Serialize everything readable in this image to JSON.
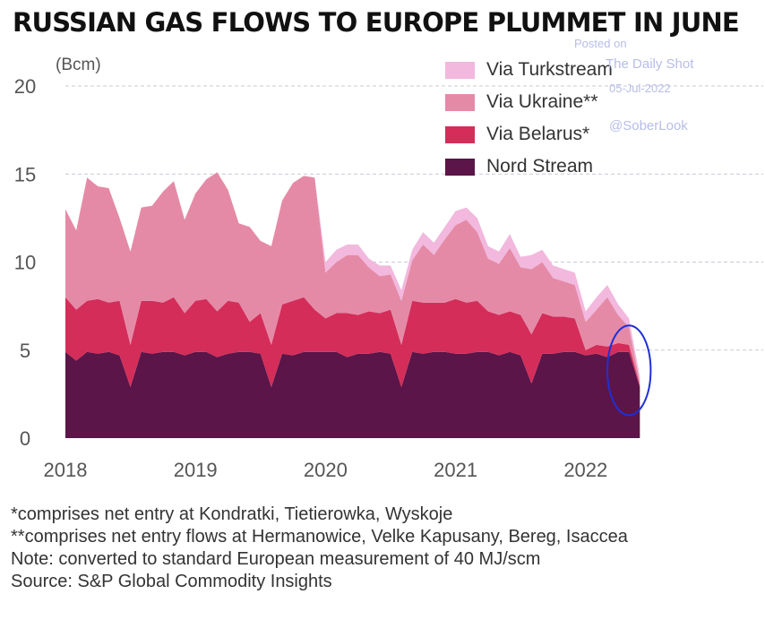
{
  "title": "RUSSIAN GAS FLOWS TO EUROPE PLUMMET IN JUNE",
  "watermark": {
    "line1": "Posted on",
    "line2": "The Daily Shot",
    "line3": "05-Jul-2022",
    "line4": "@SoberLook"
  },
  "notes": [
    "*comprises net entry at Kondratki, Tietierowka, Wyskoje",
    "**comprises net entry flows at Hermanowice, Velke Kapusany, Bereg, Isaccea",
    "Note: converted to standard European measurement of 40 MJ/scm",
    "Source: S&P Global Commodity Insights"
  ],
  "chart_data": {
    "type": "area",
    "stacked": true,
    "ylabel": "(Bcm)",
    "ylim": [
      0,
      20
    ],
    "yticks": [
      "0",
      "5",
      "10",
      "15",
      "20"
    ],
    "xticks": [
      "2018",
      "2019",
      "2020",
      "2021",
      "2022"
    ],
    "grid": "horizontal dashed",
    "legend_position": "top-right",
    "x": [
      "2018-01",
      "2018-02",
      "2018-03",
      "2018-04",
      "2018-05",
      "2018-06",
      "2018-07",
      "2018-08",
      "2018-09",
      "2018-10",
      "2018-11",
      "2018-12",
      "2019-01",
      "2019-02",
      "2019-03",
      "2019-04",
      "2019-05",
      "2019-06",
      "2019-07",
      "2019-08",
      "2019-09",
      "2019-10",
      "2019-11",
      "2019-12",
      "2020-01",
      "2020-02",
      "2020-03",
      "2020-04",
      "2020-05",
      "2020-06",
      "2020-07",
      "2020-08",
      "2020-09",
      "2020-10",
      "2020-11",
      "2020-12",
      "2021-01",
      "2021-02",
      "2021-03",
      "2021-04",
      "2021-05",
      "2021-06",
      "2021-07",
      "2021-08",
      "2021-09",
      "2021-10",
      "2021-11",
      "2021-12",
      "2022-01",
      "2022-02",
      "2022-03",
      "2022-04",
      "2022-05",
      "2022-06"
    ],
    "series": [
      {
        "name": "Nord Stream",
        "color": "#5b1548",
        "values": [
          4.9,
          4.4,
          4.9,
          4.8,
          4.9,
          4.7,
          2.9,
          4.9,
          4.8,
          4.9,
          4.9,
          4.7,
          4.9,
          4.9,
          4.6,
          4.8,
          4.9,
          4.9,
          4.8,
          2.9,
          4.8,
          4.7,
          4.9,
          4.9,
          4.9,
          4.9,
          4.6,
          4.8,
          4.8,
          4.9,
          4.8,
          2.9,
          4.9,
          4.8,
          4.9,
          4.9,
          4.8,
          4.8,
          4.9,
          4.9,
          4.7,
          4.9,
          4.7,
          3.1,
          4.8,
          4.8,
          4.9,
          4.9,
          4.7,
          4.8,
          4.6,
          4.9,
          4.9,
          2.9
        ]
      },
      {
        "name": "Via Belarus*",
        "color": "#d42d5a",
        "values": [
          3.1,
          2.9,
          2.9,
          3.1,
          2.8,
          3.1,
          2.4,
          2.9,
          3.0,
          2.8,
          3.1,
          2.4,
          2.9,
          3.0,
          2.6,
          3.0,
          2.8,
          1.7,
          2.3,
          2.4,
          2.8,
          3.1,
          3.1,
          2.4,
          1.9,
          2.2,
          2.5,
          2.2,
          2.4,
          2.2,
          2.5,
          2.4,
          2.9,
          2.9,
          2.8,
          2.8,
          3.1,
          2.9,
          2.9,
          2.3,
          2.3,
          2.3,
          2.3,
          2.8,
          2.3,
          2.1,
          2.0,
          1.9,
          0.3,
          0.5,
          0.6,
          0.5,
          0.4,
          0.1
        ]
      },
      {
        "name": "Via Ukraine**",
        "color": "#e58aa6",
        "values": [
          5.0,
          4.5,
          7.0,
          6.4,
          6.5,
          4.7,
          5.3,
          5.3,
          5.4,
          6.3,
          6.6,
          5.3,
          6.1,
          6.8,
          7.9,
          6.3,
          4.5,
          5.4,
          4.1,
          5.6,
          5.9,
          6.7,
          6.9,
          7.5,
          2.6,
          2.9,
          3.3,
          3.4,
          2.5,
          2.1,
          2.0,
          2.5,
          2.3,
          3.3,
          2.7,
          3.6,
          4.2,
          4.7,
          3.9,
          3.0,
          2.9,
          3.6,
          2.7,
          3.7,
          2.9,
          2.2,
          2.0,
          1.9,
          1.6,
          2.0,
          2.8,
          1.6,
          1.0,
          0.2
        ]
      },
      {
        "name": "Via Turkstream",
        "color": "#f2b8de",
        "values": [
          0,
          0,
          0,
          0,
          0,
          0,
          0,
          0,
          0,
          0,
          0,
          0,
          0,
          0,
          0,
          0,
          0,
          0,
          0,
          0,
          0,
          0,
          0,
          0,
          0.6,
          0.7,
          0.6,
          0.6,
          0.5,
          0.6,
          0.5,
          0.6,
          0.6,
          0.7,
          0.7,
          0.7,
          0.8,
          0.7,
          0.8,
          0.7,
          0.7,
          0.8,
          0.6,
          0.8,
          0.7,
          0.7,
          0.7,
          0.7,
          0.6,
          0.7,
          0.7,
          0.6,
          0.5,
          0.3
        ]
      }
    ],
    "annotation": {
      "type": "ellipse",
      "color": "#1f2fd6",
      "x_from": "2022-03",
      "x_to": "2022-07",
      "y_from": 1.3,
      "y_to": 6.4
    }
  }
}
